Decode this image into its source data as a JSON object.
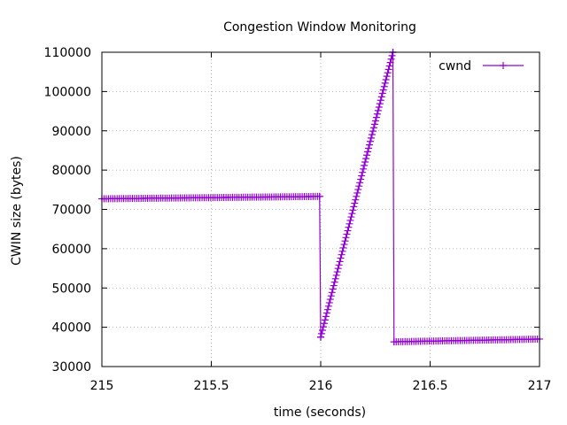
{
  "chart_data": {
    "type": "line",
    "title": "Congestion Window Monitoring",
    "xlabel": "time (seconds)",
    "ylabel": "CWIN size (bytes)",
    "xlim": [
      215,
      217
    ],
    "ylim": [
      30000,
      110000
    ],
    "x_ticks": [
      215,
      215.5,
      216,
      216.5,
      217
    ],
    "x_tick_labels": [
      "215",
      "215.5",
      "216",
      "216.5",
      "217"
    ],
    "y_ticks": [
      30000,
      40000,
      50000,
      60000,
      70000,
      80000,
      90000,
      100000,
      110000
    ],
    "y_tick_labels": [
      "30000",
      "40000",
      "50000",
      "60000",
      "70000",
      "80000",
      "90000",
      "100000",
      "110000"
    ],
    "grid": true,
    "grid_style": "dotted",
    "legend_position": "top-right",
    "series": [
      {
        "name": "cwnd",
        "color": "#9400d3",
        "marker": "plus",
        "segments": [
          {
            "x_start": 215.0,
            "x_end": 215.995,
            "y_start": 72700,
            "y_end": 73300,
            "step": 0.01
          },
          {
            "x_start": 215.995,
            "x_end": 216.0,
            "y_start": 73300,
            "y_end": 37500,
            "step": 0.005
          },
          {
            "x_start": 216.0,
            "x_end": 216.33,
            "y_start": 37500,
            "y_end": 110000,
            "step": 0.004
          },
          {
            "x_start": 216.33,
            "x_end": 216.335,
            "y_start": 110000,
            "y_end": 36300,
            "step": 0.005
          },
          {
            "x_start": 216.335,
            "x_end": 217.0,
            "y_start": 36300,
            "y_end": 37000,
            "step": 0.01
          }
        ]
      }
    ]
  }
}
